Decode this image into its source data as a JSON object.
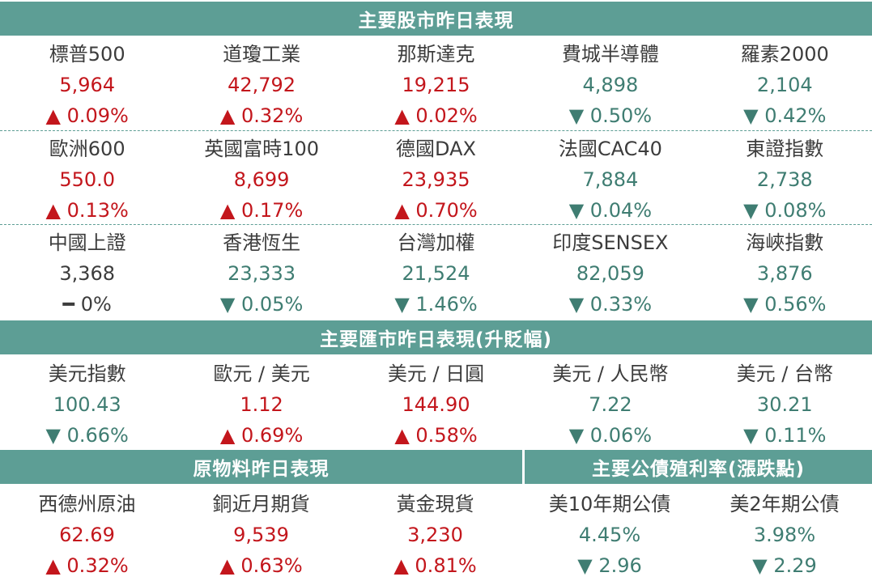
{
  "sections": {
    "stocks_title": "主要股市昨日表現",
    "fx_title": "主要匯市昨日表現(升貶幅)",
    "commod_title": "原物料昨日表現",
    "bond_title": "主要公債殖利率(漲跌點)"
  },
  "stocks": [
    [
      {
        "name": "標普500",
        "value": "5,964",
        "change": "▲ 0.09%",
        "dir": "up"
      },
      {
        "name": "道瓊工業",
        "value": "42,792",
        "change": "▲ 0.32%",
        "dir": "up"
      },
      {
        "name": "那斯達克",
        "value": "19,215",
        "change": "▲ 0.02%",
        "dir": "up"
      },
      {
        "name": "費城半導體",
        "value": "4,898",
        "change": "▼ 0.50%",
        "dir": "down"
      },
      {
        "name": "羅素2000",
        "value": "2,104",
        "change": "▼ 0.42%",
        "dir": "down"
      }
    ],
    [
      {
        "name": "歐洲600",
        "value": "550.0",
        "change": "▲ 0.13%",
        "dir": "up"
      },
      {
        "name": "英國富時100",
        "value": "8,699",
        "change": "▲ 0.17%",
        "dir": "up"
      },
      {
        "name": "德國DAX",
        "value": "23,935",
        "change": "▲ 0.70%",
        "dir": "up"
      },
      {
        "name": "法國CAC40",
        "value": "7,884",
        "change": "▼ 0.04%",
        "dir": "down"
      },
      {
        "name": "東證指數",
        "value": "2,738",
        "change": "▼ 0.08%",
        "dir": "down"
      }
    ],
    [
      {
        "name": "中國上證",
        "value": "3,368",
        "change": "━ 0%",
        "dir": "flat"
      },
      {
        "name": "香港恆生",
        "value": "23,333",
        "change": "▼ 0.05%",
        "dir": "down"
      },
      {
        "name": "台灣加權",
        "value": "21,524",
        "change": "▼ 1.46%",
        "dir": "down"
      },
      {
        "name": "印度SENSEX",
        "value": "82,059",
        "change": "▼ 0.33%",
        "dir": "down"
      },
      {
        "name": "海峽指數",
        "value": "3,876",
        "change": "▼ 0.56%",
        "dir": "down"
      }
    ]
  ],
  "fx": [
    {
      "name": "美元指數",
      "value": "100.43",
      "change": "▼ 0.66%",
      "dir": "down"
    },
    {
      "name": "歐元 / 美元",
      "value": "1.12",
      "change": "▲ 0.69%",
      "dir": "up"
    },
    {
      "name": "美元 / 日圓",
      "value": "144.90",
      "change": "▲ 0.58%",
      "dir": "up"
    },
    {
      "name": "美元 / 人民幣",
      "value": "7.22",
      "change": "▼ 0.06%",
      "dir": "down"
    },
    {
      "name": "美元 / 台幣",
      "value": "30.21",
      "change": "▼ 0.11%",
      "dir": "down"
    }
  ],
  "commod": [
    {
      "name": "西德州原油",
      "value": "62.69",
      "change": "▲ 0.32%",
      "dir": "up"
    },
    {
      "name": "銅近月期貨",
      "value": "9,539",
      "change": "▲ 0.63%",
      "dir": "up"
    },
    {
      "name": "黃金現貨",
      "value": "3,230",
      "change": "▲ 0.81%",
      "dir": "up"
    }
  ],
  "bonds": [
    {
      "name": "美10年期公債",
      "value": "4.45%",
      "change": "▼ 2.96",
      "dir": "down"
    },
    {
      "name": "美2年期公債",
      "value": "3.98%",
      "change": "▼ 2.29",
      "dir": "down"
    }
  ],
  "colors": {
    "up": "#c3161c",
    "down": "#3f7d72",
    "band": "#5d9e95"
  }
}
